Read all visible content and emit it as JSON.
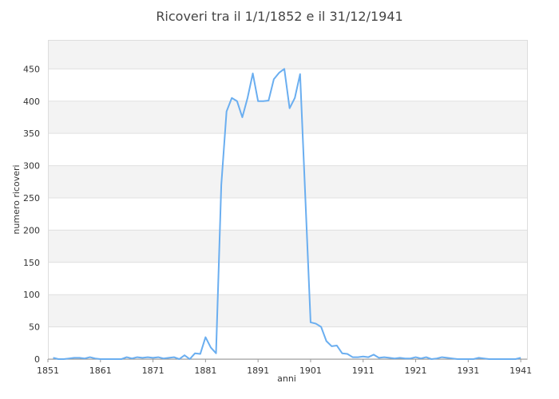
{
  "chart_data": {
    "type": "line",
    "title": "Ricoveri tra il 1/1/1852 e il 31/12/1941",
    "xlabel": "anni",
    "ylabel": "numero ricoveri",
    "xlim": [
      1851,
      1941
    ],
    "ylim": [
      0,
      495
    ],
    "xticks": [
      "1851",
      "1861",
      "1871",
      "1881",
      "1891",
      "1901",
      "1911",
      "1921",
      "1931",
      "1941"
    ],
    "yticks": [
      "0",
      "50",
      "100",
      "150",
      "200",
      "250",
      "300",
      "350",
      "400",
      "450"
    ],
    "grid": true,
    "line_color": "#6aaef0",
    "x": [
      1852,
      1853,
      1854,
      1855,
      1856,
      1857,
      1858,
      1859,
      1860,
      1861,
      1862,
      1863,
      1864,
      1865,
      1866,
      1867,
      1868,
      1869,
      1870,
      1871,
      1872,
      1873,
      1874,
      1875,
      1876,
      1877,
      1878,
      1879,
      1880,
      1881,
      1882,
      1883,
      1884,
      1885,
      1886,
      1887,
      1888,
      1889,
      1890,
      1891,
      1892,
      1893,
      1894,
      1895,
      1896,
      1897,
      1898,
      1899,
      1900,
      1901,
      1902,
      1903,
      1904,
      1905,
      1906,
      1907,
      1908,
      1909,
      1910,
      1911,
      1912,
      1913,
      1914,
      1915,
      1916,
      1917,
      1918,
      1919,
      1920,
      1921,
      1922,
      1923,
      1924,
      1925,
      1926,
      1927,
      1928,
      1929,
      1930,
      1931,
      1932,
      1933,
      1934,
      1935,
      1936,
      1937,
      1938,
      1939,
      1940,
      1941
    ],
    "y": [
      2,
      0,
      0,
      1,
      2,
      2,
      1,
      3,
      1,
      0,
      0,
      0,
      0,
      0,
      3,
      1,
      3,
      2,
      3,
      2,
      3,
      1,
      2,
      3,
      0,
      6,
      0,
      9,
      8,
      34,
      18,
      9,
      270,
      384,
      405,
      400,
      375,
      405,
      443,
      400,
      400,
      401,
      434,
      444,
      450,
      389,
      405,
      442,
      250,
      57,
      55,
      50,
      28,
      20,
      21,
      9,
      8,
      3,
      3,
      4,
      3,
      7,
      2,
      3,
      2,
      1,
      2,
      1,
      1,
      3,
      1,
      3,
      0,
      1,
      3,
      2,
      1,
      0,
      0,
      0,
      0,
      2,
      1,
      0,
      0,
      0,
      0,
      0,
      0,
      2
    ]
  }
}
